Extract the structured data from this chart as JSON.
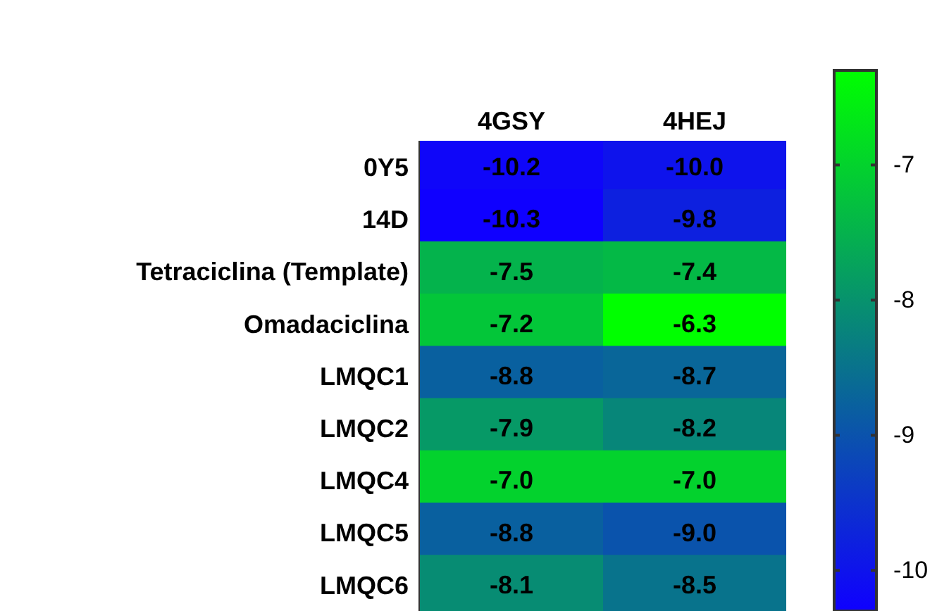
{
  "chart_data": {
    "type": "heatmap",
    "categories": [
      "4GSY",
      "4HEJ"
    ],
    "y_categories": [
      "0Y5",
      "14D",
      "Tetraciclina (Template)",
      "Omadaciclina",
      "LMQC1",
      "LMQC2",
      "LMQC4",
      "LMQC5",
      "LMQC6"
    ],
    "cells": [
      [
        -10.2,
        -10.0
      ],
      [
        -10.3,
        -9.8
      ],
      [
        -7.5,
        -7.4
      ],
      [
        -7.2,
        -6.3
      ],
      [
        -8.8,
        -8.7
      ],
      [
        -7.9,
        -8.2
      ],
      [
        -7.0,
        -7.0
      ],
      [
        -8.8,
        -9.0
      ],
      [
        -8.1,
        -8.5
      ]
    ],
    "cell_labels": [
      [
        "-10.2",
        "-10.0"
      ],
      [
        "-10.3",
        "-9.8"
      ],
      [
        "-7.5",
        "-7.4"
      ],
      [
        "-7.2",
        "-6.3"
      ],
      [
        "-8.8",
        "-8.7"
      ],
      [
        "-7.9",
        "-8.2"
      ],
      [
        "-7.0",
        "-7.0"
      ],
      [
        "-8.8",
        "-9.0"
      ],
      [
        "-8.1",
        "-8.5"
      ]
    ],
    "clim": [
      -10.3,
      -6.3
    ],
    "cticks": [
      -7,
      -8,
      -9,
      -10
    ]
  }
}
